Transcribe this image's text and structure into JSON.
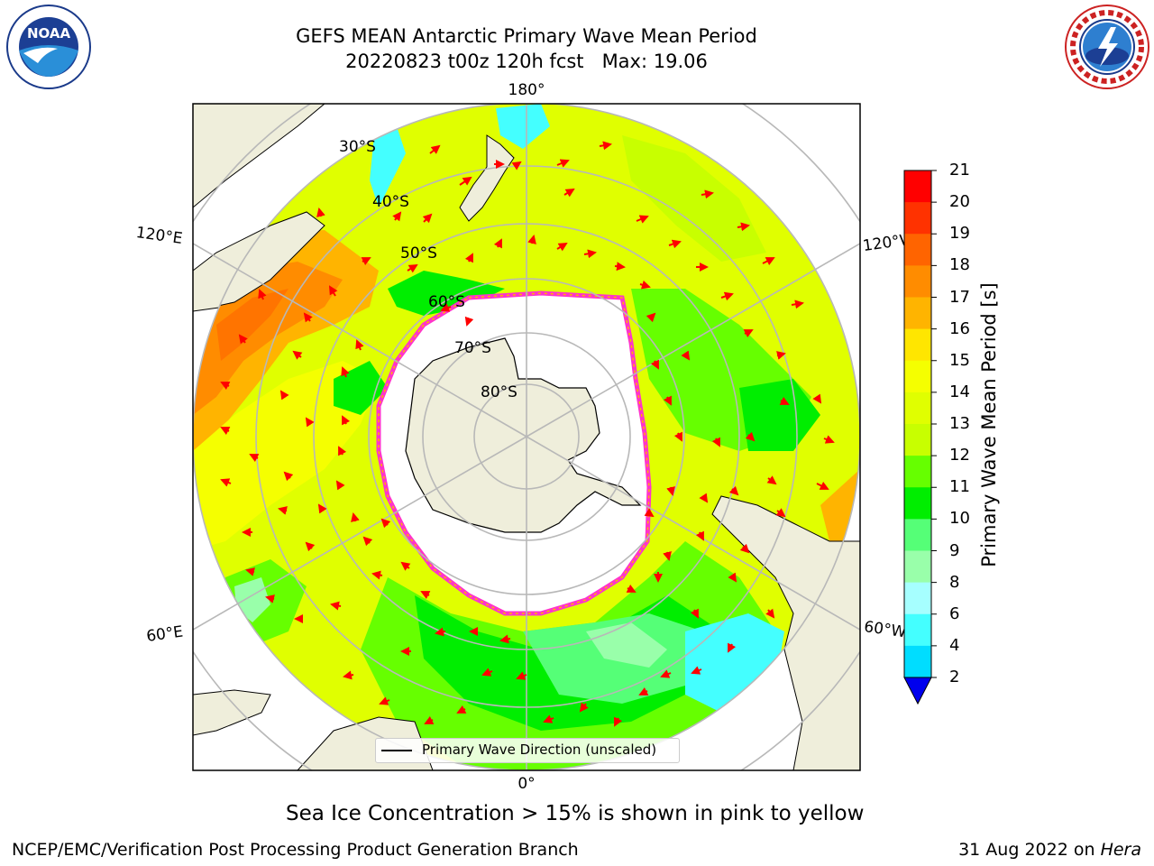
{
  "header": {
    "title_line1": "GEFS MEAN Antarctic Primary Wave Mean Period",
    "title_line2": "20220823 t00z 120h fcst   Max: 19.06"
  },
  "logos": {
    "left": "noaa-logo",
    "right": "nws-logo"
  },
  "map": {
    "projection": "south-polar-stereographic",
    "longitude_labels": {
      "top": "180°",
      "bottom": "0°",
      "left_upper": "120°E",
      "left_lower": "60°E",
      "right_upper": "120°W",
      "right_lower": "60°W"
    },
    "latitude_labels": [
      "30°S",
      "40°S",
      "50°S",
      "60°S",
      "70°S",
      "80°S"
    ],
    "legend_label": "Primary Wave Direction (unscaled)",
    "colors": {
      "ocean_main": "#e0ff00",
      "land": "#efeedb",
      "sea_ice": "#ffffff",
      "ice_edge": "#ff33cc",
      "arrows": "#ff0000"
    }
  },
  "colorbar": {
    "label": "Primary Wave Mean Period [s]",
    "ticks": [
      "21",
      "20",
      "19",
      "18",
      "17",
      "16",
      "15",
      "14",
      "13",
      "12",
      "11",
      "10",
      "9",
      "8",
      "6",
      "4",
      "2"
    ],
    "colors": [
      "#ff0000",
      "#ff3200",
      "#ff6400",
      "#ff8c00",
      "#ffb400",
      "#ffe600",
      "#f5ff00",
      "#e0ff00",
      "#c8ff00",
      "#66ff00",
      "#00ee00",
      "#55ff77",
      "#99ffaa",
      "#a6ffff",
      "#44ffff",
      "#00ddff",
      "#0077ff"
    ],
    "extend_color": "#0000ee"
  },
  "caption": "Sea Ice Concentration > 15% is shown in pink to yellow",
  "footer": {
    "left": "NCEP/EMC/Verification Post Processing Product Generation Branch",
    "date": "31 Aug 2022 on",
    "machine": "Hera"
  }
}
